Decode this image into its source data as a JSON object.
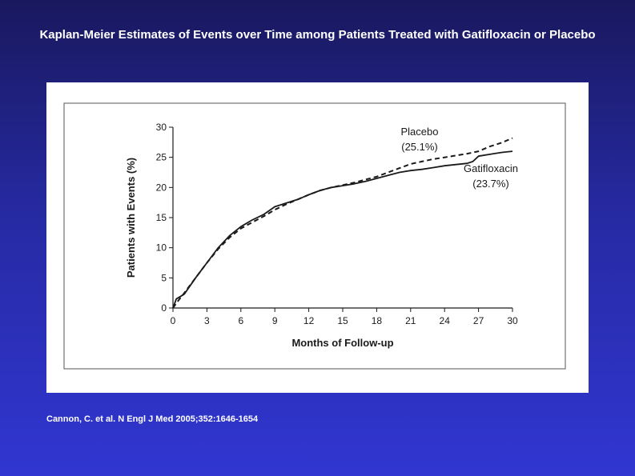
{
  "slide": {
    "title": "Kaplan-Meier Estimates of Events over Time among Patients Treated with Gatifloxacin or Placebo",
    "citation": "Cannon, C. et al. N Engl J Med 2005;352:1646-1654"
  },
  "chart_data": {
    "type": "line",
    "title": "",
    "xlabel": "Months of Follow-up",
    "ylabel": "Patients with Events (%)",
    "xlim": [
      0,
      30
    ],
    "ylim": [
      0,
      30
    ],
    "xticks": [
      0,
      3,
      6,
      9,
      12,
      15,
      18,
      21,
      24,
      27,
      30
    ],
    "yticks": [
      0,
      5,
      10,
      15,
      20,
      25,
      30
    ],
    "grid": false,
    "series": [
      {
        "name": "Placebo",
        "label_line1": "Placebo",
        "label_line2": "(25.1%)",
        "style": "dashed",
        "color": "#1a1a1a",
        "x": [
          0,
          0.3,
          1,
          2,
          3,
          4,
          5,
          6,
          7,
          8,
          9,
          10,
          11,
          12,
          13,
          14,
          15,
          16,
          17,
          18,
          19,
          20,
          21,
          22,
          23,
          24,
          25,
          26,
          27,
          28,
          29,
          30
        ],
        "y": [
          0,
          0.8,
          2.5,
          5,
          7.5,
          9.8,
          11.7,
          13.2,
          14.2,
          15.2,
          16.3,
          17.2,
          18,
          18.8,
          19.5,
          20,
          20.4,
          20.8,
          21.3,
          21.8,
          22.5,
          23.2,
          23.9,
          24.3,
          24.7,
          25,
          25.3,
          25.6,
          26,
          26.8,
          27.4,
          28.2
        ]
      },
      {
        "name": "Gatifloxacin",
        "label_line1": "Gatifloxacin",
        "label_line2": "(23.7%)",
        "style": "solid",
        "color": "#1a1a1a",
        "x": [
          0,
          0.3,
          1,
          2,
          3,
          4,
          5,
          6,
          7,
          8,
          9,
          10,
          11,
          12,
          13,
          14,
          15,
          16,
          17,
          18,
          19,
          20,
          21,
          22,
          23,
          24,
          25,
          26,
          26.5,
          27,
          28,
          29,
          30
        ],
        "y": [
          0,
          1.5,
          2.3,
          5,
          7.5,
          10,
          12,
          13.5,
          14.6,
          15.5,
          16.8,
          17.4,
          18,
          18.8,
          19.5,
          20,
          20.3,
          20.6,
          21,
          21.5,
          22,
          22.5,
          22.8,
          23,
          23.3,
          23.6,
          23.8,
          24,
          24.3,
          25.2,
          25.5,
          25.8,
          26
        ]
      }
    ]
  }
}
